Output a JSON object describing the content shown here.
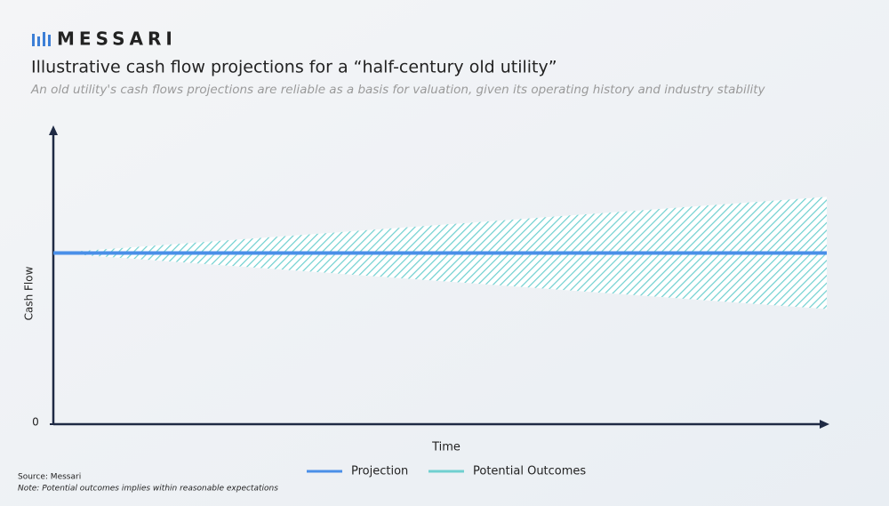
{
  "header": {
    "brand": "MESSARI"
  },
  "chart_data": {
    "type": "line",
    "title": "Illustrative cash flow projections for a “half-century old utility”",
    "subtitle": "An old utility's cash flows projections are reliable as a basis for valuation, given its operating history and industry stability",
    "x_label": "Time",
    "y_label": "Cash Flow",
    "x": [
      0,
      1
    ],
    "xlim": [
      0,
      1
    ],
    "ylim": [
      0,
      100
    ],
    "yticks": [
      0
    ],
    "series": [
      {
        "name": "Projection",
        "color": "#4a8fe8",
        "values": [
          58,
          58
        ]
      },
      {
        "name": "Potential Outcomes",
        "color": "#6fd0d0",
        "low": [
          58,
          39
        ],
        "high": [
          58,
          77
        ]
      }
    ]
  },
  "footer": {
    "source": "Source: Messari",
    "note": "Note: Potential outcomes  implies within reasonable expectations"
  }
}
